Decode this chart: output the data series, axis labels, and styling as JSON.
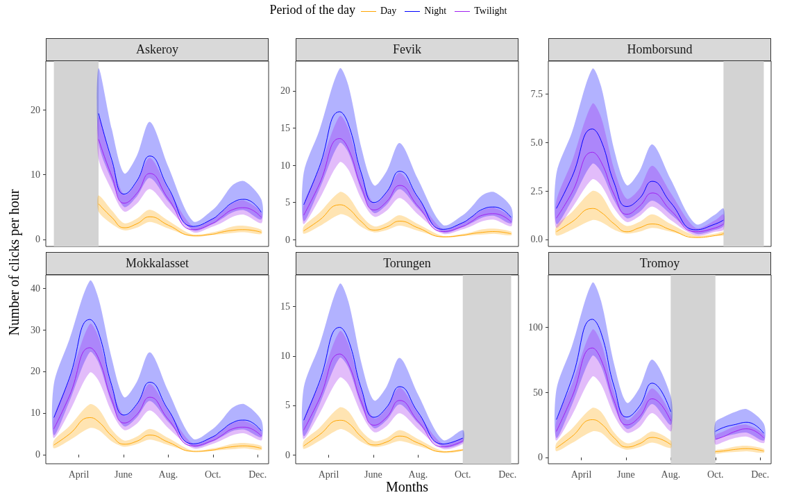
{
  "chart_data": [
    {
      "type": "line",
      "title": "Askeroy",
      "legend": "top",
      "legend_title": "Period of the day",
      "ylabel": "Number of clicks per hour",
      "tick_labels": "y",
      "x": [
        "--04-28",
        "--05-16",
        "--06-02",
        "--06-19",
        "--07-07",
        "--08-01",
        "--09-04",
        "--10-01",
        "--10-12",
        "--10-28",
        "--11-13",
        "--12-06"
      ],
      "xlim": [
        "--02-15",
        "--12-16"
      ],
      "ylim": [
        -1.1,
        27.6
      ],
      "yticks": [
        0,
        10,
        20
      ],
      "bands": [
        {
          "axis": "x",
          "from": "--02-26",
          "to": "--04-28",
          "color": "#d3d3d3"
        }
      ],
      "series": [
        {
          "name": "Day",
          "color": "#ffa500",
          "values": [
            5.5,
            3.4,
            1.8,
            2.4,
            3.5,
            2.2,
            0.6,
            0.8,
            1.1,
            1.4,
            1.5,
            1.1
          ],
          "upper": [
            6.8,
            4.5,
            2.5,
            3.2,
            4.6,
            2.9,
            0.7,
            1.1,
            1.4,
            2,
            2.1,
            1.5
          ],
          "lower": [
            4.3,
            2.4,
            1.4,
            1.8,
            2.7,
            1.7,
            0.4,
            0.7,
            0.8,
            1,
            1.1,
            0.8
          ]
        },
        {
          "name": "Night",
          "color": "#0000ff",
          "values": [
            19.5,
            12.3,
            7,
            9,
            12.9,
            8,
            2,
            3.2,
            4.2,
            5.7,
            6.2,
            4.2
          ],
          "upper": [
            26.5,
            17.1,
            10.2,
            12.9,
            18.2,
            11.3,
            2.8,
            4.6,
            6,
            8.4,
            9,
            6.2
          ],
          "lower": [
            15,
            9.1,
            5,
            6.6,
            9.5,
            5.9,
            1.4,
            2.4,
            3.1,
            4.2,
            4.5,
            3.1
          ]
        },
        {
          "name": "Twilight",
          "color": "#a020f0",
          "values": [
            15.5,
            9.8,
            5.6,
            7.1,
            10.2,
            6.3,
            1.5,
            2.5,
            3.4,
            4.6,
            4.9,
            3.4
          ],
          "upper": [
            19,
            11.9,
            6.9,
            8.8,
            12.6,
            7.8,
            2,
            3.2,
            4.2,
            5.6,
            6,
            4.2
          ],
          "lower": [
            12.5,
            7.6,
            4.3,
            5.5,
            7.8,
            4.8,
            1.1,
            2,
            2.5,
            3.5,
            3.8,
            2.5
          ]
        }
      ]
    },
    {
      "type": "line",
      "title": "Fevik",
      "tick_labels": "y",
      "x": [
        "--02-26",
        "--03-19",
        "--04-16",
        "--04-28",
        "--05-16",
        "--06-02",
        "--06-19",
        "--07-07",
        "--08-01",
        "--09-04",
        "--10-01",
        "--10-12",
        "--10-28",
        "--11-13",
        "--12-06"
      ],
      "xlim": [
        "--02-15",
        "--12-16"
      ],
      "ylim": [
        -0.9,
        24
      ],
      "yticks": [
        0,
        5,
        10,
        15,
        20
      ],
      "series": [
        {
          "color": "#ffa500",
          "values": [
            1.2,
            2.6,
            4.7,
            4.2,
            2.4,
            1.3,
            1.7,
            2.5,
            1.6,
            0.4,
            0.6,
            0.8,
            1.0,
            1.1,
            0.8
          ],
          "upper": [
            1.8,
            3.6,
            6.4,
            5.8,
            3.2,
            1.8,
            2.3,
            3.3,
            2.1,
            0.5,
            0.8,
            1.0,
            1.4,
            1.5,
            1.1
          ],
          "lower": [
            0.8,
            1.8,
            3.4,
            3.1,
            1.7,
            1.0,
            1.3,
            1.9,
            1.2,
            0.3,
            0.5,
            0.6,
            0.7,
            0.8,
            0.6
          ]
        },
        {
          "color": "#0000ff",
          "values": [
            4.7,
            9.7,
            17.2,
            15.5,
            8.8,
            5.0,
            6.4,
            9.2,
            5.7,
            1.4,
            2.3,
            3.0,
            4.1,
            4.4,
            3.0
          ],
          "upper": [
            9,
            14.6,
            23,
            20.7,
            12.2,
            7.3,
            9.2,
            13,
            8.1,
            2,
            3.3,
            4.3,
            6.0,
            6.4,
            4.4
          ],
          "lower": [
            2.5,
            6.7,
            13,
            11.7,
            6.5,
            3.6,
            4.7,
            6.8,
            4.2,
            1,
            1.7,
            2.2,
            3.0,
            3.2,
            2.2
          ]
        },
        {
          "color": "#a020f0",
          "values": [
            3.3,
            7.4,
            13.6,
            12.2,
            7.0,
            4.0,
            5.1,
            7.3,
            4.5,
            1.1,
            1.8,
            2.4,
            3.3,
            3.5,
            2.4
          ],
          "upper": [
            4.8,
            9.5,
            16.6,
            14.9,
            8.5,
            4.9,
            6.3,
            9.0,
            5.6,
            1.4,
            2.3,
            3.0,
            4.0,
            4.3,
            3.0
          ],
          "lower": [
            2.1,
            5.4,
            10.4,
            9.4,
            5.4,
            3.1,
            3.9,
            5.6,
            3.4,
            0.8,
            1.4,
            1.8,
            2.5,
            2.7,
            1.8
          ]
        }
      ]
    },
    {
      "type": "line",
      "title": "Homborsund",
      "tick_labels": "y",
      "x": [
        "--02-26",
        "--03-19",
        "--04-16",
        "--04-28",
        "--05-16",
        "--06-02",
        "--06-19",
        "--07-07",
        "--08-01",
        "--09-04",
        "--10-01",
        "--10-12"
      ],
      "xlim": [
        "--02-15",
        "--12-16"
      ],
      "ylim": [
        -0.36,
        9.2
      ],
      "yticks": [
        {
          "value": 0,
          "label": "0.0"
        },
        {
          "value": 2.5,
          "label": "2.5"
        },
        {
          "value": 5,
          "label": "5.0"
        },
        {
          "value": 7.5,
          "label": "7.5"
        }
      ],
      "bands": [
        {
          "axis": "x",
          "from": "--10-12",
          "to": "--12-06",
          "color": "#d3d3d3"
        }
      ],
      "series": [
        {
          "color": "#ffa500",
          "values": [
            0.4,
            0.9,
            1.6,
            1.4,
            0.8,
            0.4,
            0.6,
            0.8,
            0.5,
            0.1,
            0.2,
            0.3
          ],
          "upper": [
            0.7,
            1.4,
            2.5,
            2.3,
            1.2,
            0.7,
            0.9,
            1.3,
            0.8,
            0.2,
            0.3,
            0.4
          ],
          "lower": [
            0.2,
            0.5,
            1,
            0.9,
            0.5,
            0.3,
            0.4,
            0.6,
            0.4,
            0.1,
            0.2,
            0.2
          ]
        },
        {
          "color": "#0000ff",
          "values": [
            1.6,
            3.2,
            5.7,
            5.1,
            2.9,
            1.7,
            2.1,
            3.0,
            1.9,
            0.5,
            0.8,
            1.0
          ],
          "upper": [
            3.4,
            5.5,
            8.8,
            7.9,
            4.6,
            2.8,
            3.5,
            4.9,
            3.1,
            0.8,
            1.3,
            1.6
          ],
          "lower": [
            0.8,
            2,
            3.9,
            3.5,
            2,
            1.1,
            1.4,
            2,
            1.3,
            0.3,
            0.5,
            0.7
          ]
        },
        {
          "color": "#a020f0",
          "values": [
            1.1,
            2.4,
            4.5,
            4,
            2.3,
            1.3,
            1.7,
            2.4,
            1.5,
            0.4,
            0.6,
            0.8
          ],
          "upper": [
            2,
            4,
            7,
            6.3,
            3.6,
            2.1,
            2.6,
            3.8,
            2.4,
            0.6,
            1,
            1.3
          ],
          "lower": [
            0.6,
            1.6,
            3.1,
            2.8,
            1.6,
            0.9,
            1.2,
            1.7,
            1,
            0.2,
            0.4,
            0.5
          ]
        }
      ]
    },
    {
      "type": "line",
      "title": "Mokkalasset",
      "x": [
        "--02-26",
        "--03-19",
        "--04-16",
        "--04-28",
        "--05-16",
        "--06-02",
        "--06-19",
        "--07-07",
        "--08-01",
        "--09-04",
        "--10-01",
        "--10-12",
        "--10-28",
        "--11-13",
        "--12-06"
      ],
      "xlim": [
        "--02-15",
        "--12-16"
      ],
      "xticks": [
        {
          "value": "--04-01",
          "label": "April"
        },
        {
          "value": "--06-01",
          "label": "June"
        },
        {
          "value": "--08-01",
          "label": "Aug."
        },
        {
          "value": "--10-01",
          "label": "Oct."
        },
        {
          "value": "--12-01",
          "label": "Dec."
        }
      ],
      "ylim": [
        -2.2,
        43.2
      ],
      "yticks": [
        0,
        10,
        20,
        30,
        40
      ],
      "series": [
        {
          "color": "#ffa500",
          "values": [
            2.3,
            4.9,
            8.9,
            7.9,
            4.5,
            2.5,
            3.2,
            4.7,
            3.0,
            0.8,
            1.1,
            1.5,
            1.9,
            2.1,
            1.5
          ],
          "upper": [
            3.4,
            6.8,
            12.1,
            11,
            6,
            3.4,
            4.3,
            6.2,
            4,
            0.9,
            1.5,
            1.9,
            2.6,
            2.8,
            2.1
          ],
          "lower": [
            1.5,
            3.4,
            6.4,
            5.9,
            3.2,
            1.9,
            2.5,
            3.6,
            2.3,
            0.6,
            0.9,
            1.1,
            1.3,
            1.5,
            1.1
          ]
        },
        {
          "color": "#0000ff",
          "values": [
            8.9,
            18.3,
            32.5,
            29.3,
            16.6,
            9.5,
            12.1,
            17.4,
            10.8,
            2.6,
            4.3,
            5.7,
            7.7,
            8.3,
            5.7
          ],
          "upper": [
            17,
            27.6,
            41.8,
            37.5,
            23.1,
            13.8,
            17.4,
            24.6,
            15.3,
            3.8,
            6.2,
            8.1,
            11.3,
            12.1,
            8.3
          ],
          "lower": [
            4.7,
            12.7,
            24.6,
            22.1,
            12.3,
            6.8,
            8.9,
            12.9,
            7.9,
            1.9,
            3.2,
            4.2,
            5.7,
            6.0,
            4.2
          ]
        },
        {
          "color": "#a020f0",
          "values": [
            6.2,
            14,
            25.7,
            23.1,
            13.2,
            7.6,
            9.6,
            13.8,
            8.5,
            2.1,
            3.4,
            4.5,
            6.2,
            6.6,
            4.5
          ],
          "upper": [
            9.1,
            18,
            31.4,
            28.2,
            16.1,
            9.3,
            11.9,
            17,
            10.6,
            2.6,
            4.3,
            5.7,
            7.6,
            8.1,
            5.7
          ],
          "lower": [
            4,
            10.2,
            19.7,
            17.8,
            10.2,
            5.9,
            7.4,
            10.6,
            6.4,
            1.5,
            2.6,
            3.4,
            4.7,
            5.1,
            3.4
          ]
        }
      ]
    },
    {
      "type": "line",
      "title": "Torungen",
      "xlabel": "Months",
      "x": [
        "--02-26",
        "--03-19",
        "--04-16",
        "--04-28",
        "--05-16",
        "--06-02",
        "--06-19",
        "--07-07",
        "--08-01",
        "--09-04",
        "--10-01"
      ],
      "xlim": [
        "--02-15",
        "--12-16"
      ],
      "xticks": [
        {
          "value": "--04-01",
          "label": "April"
        },
        {
          "value": "--06-01",
          "label": "June"
        },
        {
          "value": "--08-01",
          "label": "Aug."
        },
        {
          "value": "--10-01",
          "label": "Oct."
        },
        {
          "value": "--12-01",
          "label": "Dec."
        }
      ],
      "ylim": [
        -0.9,
        18.2
      ],
      "yticks": [
        0,
        5,
        10,
        15
      ],
      "bands": [
        {
          "axis": "x",
          "from": "--10-01",
          "to": "--12-06",
          "color": "#d3d3d3"
        }
      ],
      "series": [
        {
          "color": "#ffa500",
          "values": [
            0.9,
            2,
            3.5,
            3.2,
            1.8,
            1,
            1.3,
            1.9,
            1.2,
            0.3,
            0.5
          ],
          "upper": [
            1.4,
            2.7,
            4.8,
            4.4,
            2.4,
            1.4,
            1.7,
            2.5,
            1.6,
            0.4,
            0.6
          ],
          "lower": [
            0.6,
            1.4,
            2.6,
            2.3,
            1.3,
            0.8,
            1,
            1.4,
            0.9,
            0.2,
            0.4
          ]
        },
        {
          "color": "#0000ff",
          "values": [
            3.5,
            7.3,
            12.9,
            11.6,
            6.6,
            3.8,
            4.8,
            6.9,
            4.3,
            1.1,
            1.7
          ],
          "upper": [
            6.8,
            11,
            17.3,
            15.5,
            9.2,
            5.5,
            6.9,
            9.8,
            6.1,
            1.5,
            2.5
          ],
          "lower": [
            1.9,
            5,
            9.8,
            8.8,
            4.9,
            2.7,
            3.5,
            5.1,
            3.2,
            0.8,
            1.3
          ]
        },
        {
          "color": "#a020f0",
          "values": [
            2.5,
            5.6,
            10.2,
            9.2,
            5.3,
            3,
            3.8,
            5.5,
            3.4,
            0.8,
            1.4
          ],
          "upper": [
            3.6,
            7.1,
            12.5,
            11.2,
            6.4,
            3.7,
            4.7,
            6.8,
            4.2,
            1.1,
            1.7
          ],
          "lower": [
            1.6,
            4.1,
            7.8,
            7.1,
            4.1,
            2.3,
            2.9,
            4.2,
            2.6,
            0.6,
            1.1
          ]
        }
      ]
    },
    {
      "type": "line",
      "title": "Tromoy",
      "x": [
        "--02-26",
        "--03-19",
        "--04-16",
        "--04-28",
        "--05-16",
        "--06-02",
        "--06-19",
        "--07-07",
        "--08-01",
        "--09-04",
        "--10-01",
        "--10-12",
        "--10-28",
        "--11-13",
        "--12-06"
      ],
      "xlim": [
        "--02-15",
        "--12-16"
      ],
      "xticks": [
        {
          "value": "--04-01",
          "label": "April"
        },
        {
          "value": "--06-01",
          "label": "June"
        },
        {
          "value": "--08-01",
          "label": "Aug."
        },
        {
          "value": "--10-01",
          "label": "Oct."
        },
        {
          "value": "--12-01",
          "label": "Dec."
        }
      ],
      "ylim": [
        -4.8,
        140
      ],
      "yticks": [
        0,
        50,
        100
      ],
      "bands": [
        {
          "axis": "x",
          "from": "--08-01",
          "to": "--10-01",
          "color": "#d3d3d3"
        }
      ],
      "series": [
        {
          "color": "#ffa500",
          "values": [
            7.4,
            16,
            29,
            26,
            15,
            8,
            10.5,
            15.4,
            9.9,
            null,
            4.5,
            5,
            6.2,
            6.8,
            4.9
          ],
          "upper": [
            11,
            22,
            38,
            35,
            19,
            11,
            14,
            20,
            13,
            null,
            5.5,
            6.5,
            8.4,
            9,
            6.6
          ],
          "lower": [
            4.8,
            11,
            20,
            19,
            10,
            6,
            7.8,
            11.4,
            7.2,
            null,
            3,
            3.6,
            4.2,
            4.8,
            3.6
          ]
        },
        {
          "color": "#0000ff",
          "values": [
            29,
            60,
            106,
            95.5,
            54,
            31,
            39,
            57,
            35,
            null,
            20,
            23,
            25.3,
            27,
            18.5
          ],
          "upper": [
            52,
            85,
            134,
            120,
            71,
            42,
            53,
            75,
            47,
            null,
            27,
            31,
            35,
            37,
            26
          ],
          "lower": [
            15,
            40,
            78,
            70,
            39,
            22,
            28,
            41,
            25,
            null,
            14,
            16,
            18,
            19,
            13
          ]
        },
        {
          "color": "#a020f0",
          "values": [
            20,
            46,
            84,
            75,
            43,
            25,
            31,
            45,
            28,
            null,
            14,
            16,
            20,
            22,
            15
          ],
          "upper": [
            28,
            56,
            98,
            88,
            50,
            29,
            37,
            53,
            33,
            null,
            17,
            20,
            24,
            25,
            18
          ],
          "lower": [
            13,
            32,
            62,
            56,
            32,
            19,
            23,
            34,
            20,
            null,
            10,
            12,
            15,
            16,
            11
          ]
        }
      ]
    }
  ]
}
